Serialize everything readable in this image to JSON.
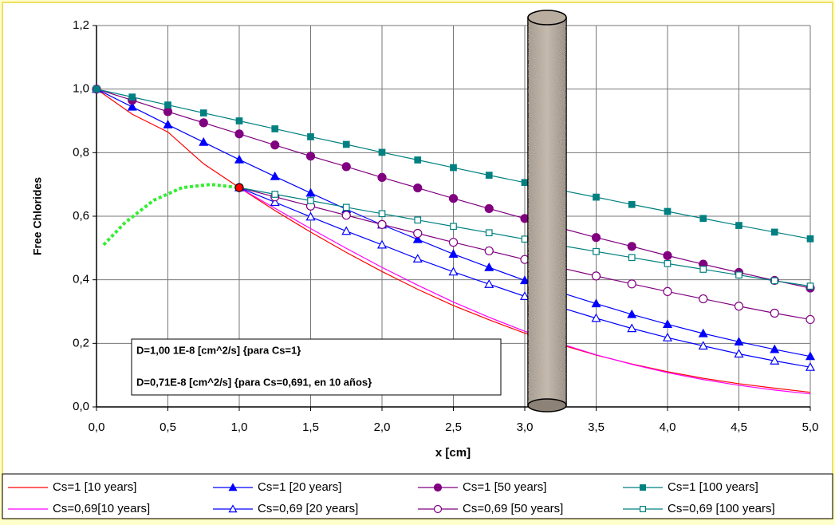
{
  "chart_data": {
    "type": "line",
    "y_label": "Free Chlorides",
    "x_label": "x [cm]",
    "xlim": [
      0,
      5
    ],
    "ylim": [
      0,
      1.2
    ],
    "xticks": [
      {
        "value": 0,
        "label": "0,0"
      },
      {
        "value": 0.5,
        "label": "0,5"
      },
      {
        "value": 1,
        "label": "1,0"
      },
      {
        "value": 1.5,
        "label": "1,5"
      },
      {
        "value": 2,
        "label": "2,0"
      },
      {
        "value": 2.5,
        "label": "2,5"
      },
      {
        "value": 3,
        "label": "3,0"
      },
      {
        "value": 3.5,
        "label": "3,5"
      },
      {
        "value": 4,
        "label": "4,0"
      },
      {
        "value": 4.5,
        "label": "4,5"
      },
      {
        "value": 5,
        "label": "5,0"
      }
    ],
    "yticks": [
      {
        "value": 0,
        "label": "0,0"
      },
      {
        "value": 0.2,
        "label": "0,2"
      },
      {
        "value": 0.4,
        "label": "0,4"
      },
      {
        "value": 0.6,
        "label": "0,6"
      },
      {
        "value": 0.8,
        "label": "0,8"
      },
      {
        "value": 1,
        "label": "1,0"
      },
      {
        "value": 1.2,
        "label": "1,2"
      }
    ],
    "grid": true,
    "x": [
      0,
      0.25,
      0.5,
      0.75,
      1.0,
      1.25,
      1.5,
      1.75,
      2.0,
      2.25,
      2.5,
      2.75,
      3.0,
      3.25,
      3.5,
      3.75,
      4.0,
      4.25,
      4.5,
      4.75,
      5.0
    ],
    "series": [
      {
        "name": "Cs=1 [10 years]",
        "color": "#ff0000",
        "marker": "none",
        "filled": true,
        "values": [
          1,
          0.921,
          0.865,
          0.765,
          0.69,
          0.618,
          0.55,
          0.486,
          0.426,
          0.37,
          0.319,
          0.274,
          0.232,
          0.196,
          0.163,
          0.135,
          0.111,
          0.09,
          0.073,
          0.059,
          0.046
        ]
      },
      {
        "name": "Cs=1 [20 years]",
        "color": "#0000ff",
        "marker": "triangle",
        "filled": true,
        "values": [
          1,
          0.944,
          0.888,
          0.833,
          0.778,
          0.725,
          0.673,
          0.622,
          0.573,
          0.527,
          0.481,
          0.439,
          0.398,
          0.36,
          0.325,
          0.291,
          0.26,
          0.231,
          0.205,
          0.181,
          0.159
        ]
      },
      {
        "name": "Cs=1 [50 years]",
        "color": "#800080",
        "marker": "circle",
        "filled": true,
        "values": [
          1,
          0.965,
          0.929,
          0.894,
          0.859,
          0.824,
          0.789,
          0.756,
          0.722,
          0.689,
          0.656,
          0.624,
          0.593,
          0.563,
          0.533,
          0.505,
          0.476,
          0.449,
          0.423,
          0.398,
          0.374
        ]
      },
      {
        "name": "Cs=1 [100 years]",
        "color": "#008080",
        "marker": "square",
        "filled": true,
        "values": [
          1,
          0.975,
          0.95,
          0.925,
          0.9,
          0.875,
          0.85,
          0.826,
          0.801,
          0.777,
          0.753,
          0.729,
          0.706,
          0.682,
          0.66,
          0.637,
          0.615,
          0.593,
          0.571,
          0.55,
          0.529
        ]
      },
      {
        "name": "Cs=0,69[10 years]",
        "color": "#ff00ff",
        "marker": "none",
        "filled": true,
        "values": [
          null,
          null,
          null,
          null,
          0.69,
          0.625,
          0.561,
          0.499,
          0.439,
          0.383,
          0.33,
          0.282,
          0.238,
          0.199,
          0.164,
          0.134,
          0.108,
          0.086,
          0.068,
          0.053,
          0.041
        ]
      },
      {
        "name": "Cs=0,69 [20 years]",
        "color": "#0000ff",
        "marker": "triangle",
        "filled": false,
        "values": [
          null,
          null,
          null,
          null,
          0.69,
          0.644,
          0.598,
          0.553,
          0.51,
          0.466,
          0.425,
          0.386,
          0.348,
          0.313,
          0.279,
          0.247,
          0.218,
          0.192,
          0.167,
          0.145,
          0.125
        ]
      },
      {
        "name": "Cs=0,69 [50 years]",
        "color": "#800080",
        "marker": "circle",
        "filled": false,
        "values": [
          null,
          null,
          null,
          null,
          0.69,
          0.661,
          0.632,
          0.603,
          0.574,
          0.546,
          0.518,
          0.491,
          0.464,
          0.438,
          0.412,
          0.387,
          0.363,
          0.34,
          0.317,
          0.295,
          0.275
        ]
      },
      {
        "name": "Cs=0,69 [100 years]",
        "color": "#008080",
        "marker": "square",
        "filled": false,
        "values": [
          null,
          null,
          null,
          null,
          0.69,
          0.669,
          0.649,
          0.628,
          0.608,
          0.588,
          0.568,
          0.548,
          0.528,
          0.508,
          0.489,
          0.47,
          0.451,
          0.433,
          0.415,
          0.397,
          0.38
        ]
      }
    ],
    "fit_curve": {
      "color": "#33ee33",
      "x": [
        0.05,
        0.2,
        0.4,
        0.6,
        0.8,
        1.0
      ],
      "values": [
        0.51,
        0.58,
        0.65,
        0.69,
        0.7,
        0.69
      ]
    },
    "point": {
      "x": 1.0,
      "y": 0.69,
      "color": "#ff0000"
    },
    "annotations": [
      "D=1,00 1E-8 [cm^2/s] {para Cs=1}",
      "D=0,71E-8 [cm^2/s] {para Cs=0,691, en 10 años}"
    ]
  }
}
